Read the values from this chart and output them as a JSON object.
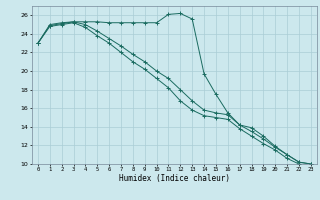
{
  "title": "",
  "xlabel": "Humidex (Indice chaleur)",
  "background_color": "#cce8ed",
  "grid_color": "#aacdd5",
  "line_color": "#1a6b60",
  "x_values": [
    0,
    1,
    2,
    3,
    4,
    5,
    6,
    7,
    8,
    9,
    10,
    11,
    12,
    13,
    14,
    15,
    16,
    17,
    18,
    19,
    20,
    21,
    22,
    23
  ],
  "line1": [
    23.0,
    25.0,
    25.2,
    25.3,
    25.3,
    25.3,
    25.2,
    25.2,
    25.2,
    25.2,
    25.2,
    26.1,
    26.2,
    25.6,
    19.7,
    17.5,
    15.5,
    14.2,
    13.9,
    13.0,
    11.9,
    11.0,
    10.2,
    10.0
  ],
  "line2": [
    23.0,
    24.9,
    25.1,
    25.3,
    25.0,
    24.3,
    23.5,
    22.7,
    21.8,
    21.0,
    20.0,
    19.2,
    18.0,
    16.8,
    15.8,
    15.5,
    15.3,
    14.2,
    13.5,
    12.7,
    11.8,
    11.0,
    10.2,
    10.0
  ],
  "line3": [
    23.0,
    24.8,
    25.0,
    25.2,
    24.7,
    23.8,
    23.0,
    22.0,
    21.0,
    20.2,
    19.2,
    18.2,
    16.8,
    15.8,
    15.2,
    15.0,
    14.8,
    13.8,
    13.0,
    12.2,
    11.5,
    10.6,
    10.0,
    9.8
  ],
  "ylim": [
    10,
    27
  ],
  "xlim": [
    -0.5,
    23.5
  ],
  "yticks": [
    10,
    12,
    14,
    16,
    18,
    20,
    22,
    24,
    26
  ],
  "xticks": [
    0,
    1,
    2,
    3,
    4,
    5,
    6,
    7,
    8,
    9,
    10,
    11,
    12,
    13,
    14,
    15,
    16,
    17,
    18,
    19,
    20,
    21,
    22,
    23
  ]
}
